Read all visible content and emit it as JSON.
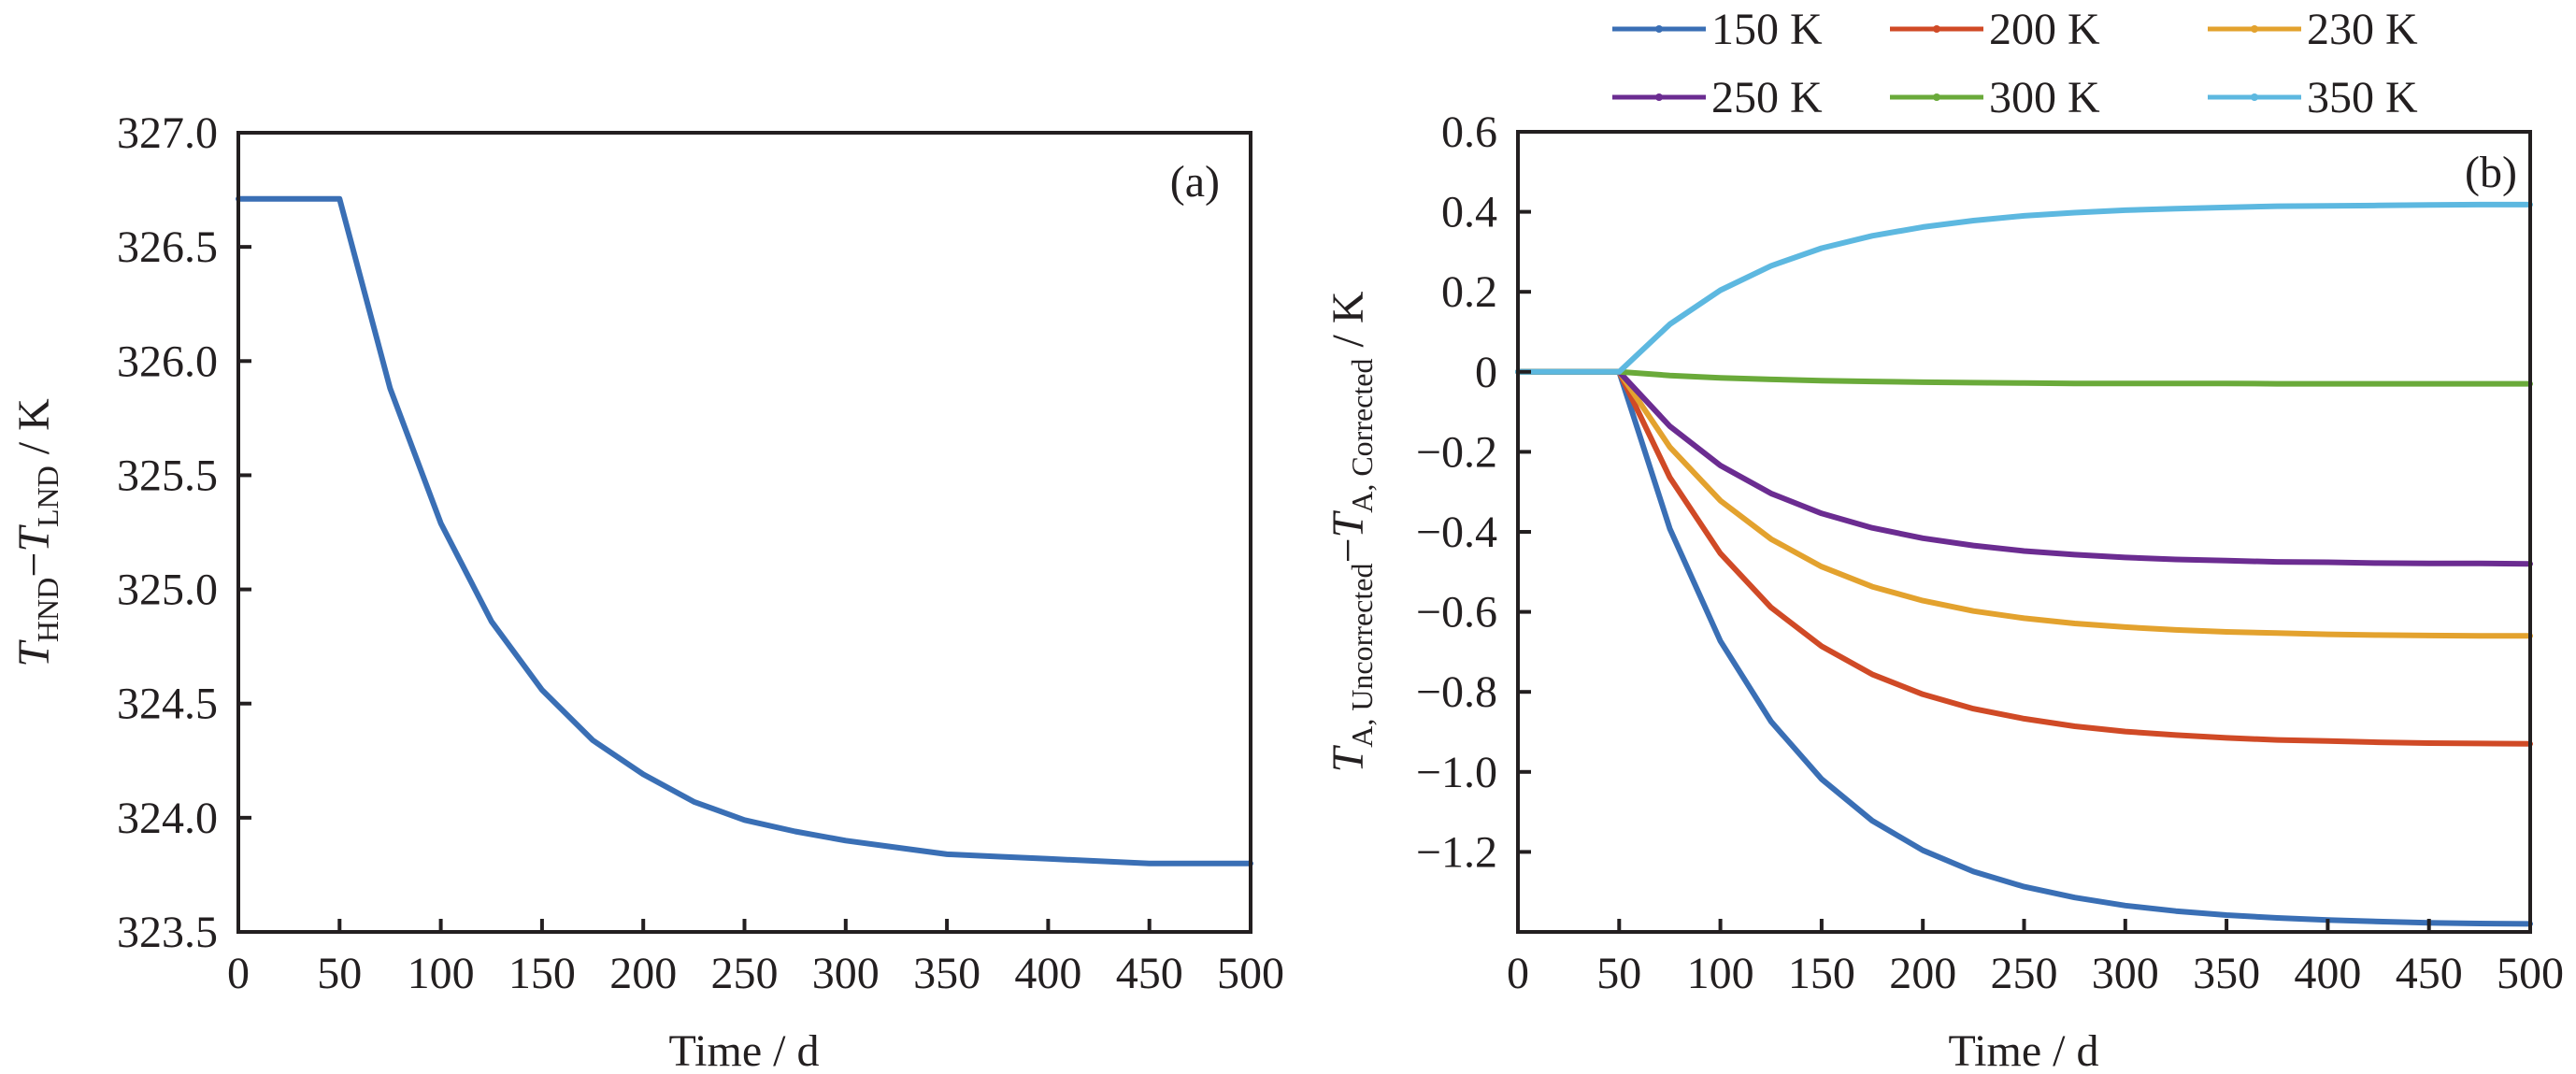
{
  "chart_data": [
    {
      "type": "line",
      "panel_label": "(a)",
      "title": "",
      "xlabel": "Time / d",
      "ylabel": {
        "main": "T",
        "sub1": "HND",
        "minus": "−",
        "main2": "T",
        "sub2": "LND",
        "unit": " / K"
      },
      "xlim": [
        0,
        500
      ],
      "ylim": [
        323.5,
        327.0
      ],
      "xticks": [
        0,
        50,
        100,
        150,
        200,
        250,
        300,
        350,
        400,
        450,
        500
      ],
      "xtick_labels": [
        "0",
        "50",
        "100",
        "150",
        "200",
        "250",
        "300",
        "350",
        "400",
        "450",
        "500"
      ],
      "yticks": [
        323.5,
        324.0,
        324.5,
        325.0,
        325.5,
        326.0,
        326.5,
        327.0
      ],
      "ytick_labels": [
        "323.5",
        "324.0",
        "324.5",
        "325.0",
        "325.5",
        "326.0",
        "326.5",
        "327.0"
      ],
      "grid": false,
      "x": [
        0,
        25,
        50,
        75,
        100,
        125,
        150,
        175,
        200,
        225,
        250,
        275,
        300,
        325,
        350,
        375,
        400,
        425,
        450,
        475,
        500
      ],
      "series": [
        {
          "name": "T_HND − T_LND",
          "color": "#3a6fb5",
          "values": [
            326.71,
            326.71,
            326.71,
            325.88,
            325.29,
            324.86,
            324.56,
            324.34,
            324.19,
            324.07,
            323.99,
            323.94,
            323.9,
            323.87,
            323.84,
            323.83,
            323.82,
            323.81,
            323.8,
            323.8,
            323.8
          ]
        }
      ]
    },
    {
      "type": "line",
      "panel_label": "(b)",
      "title": "",
      "xlabel": "Time / d",
      "ylabel": {
        "main": "T",
        "sub1": "A, Uncorrected",
        "minus": "−",
        "main2": "T",
        "sub2": "A, Corrected",
        "unit": " / K"
      },
      "xlim": [
        0,
        500
      ],
      "ylim": [
        -1.4,
        0.6
      ],
      "xticks": [
        0,
        50,
        100,
        150,
        200,
        250,
        300,
        350,
        400,
        450,
        500
      ],
      "xtick_labels": [
        "0",
        "50",
        "100",
        "150",
        "200",
        "250",
        "300",
        "350",
        "400",
        "450",
        "500"
      ],
      "yticks": [
        -1.2,
        -1.0,
        -0.8,
        -0.6,
        -0.4,
        -0.2,
        0,
        0.2,
        0.4,
        0.6
      ],
      "ytick_labels": [
        "−1.2",
        "−1.0",
        "−0.8",
        "−0.6",
        "−0.4",
        "−0.2",
        "0",
        "0.2",
        "0.4",
        "0.6"
      ],
      "grid": false,
      "legend_position": "top (above plot, 2 rows × 3 columns)",
      "x": [
        0,
        25,
        50,
        75,
        100,
        125,
        150,
        175,
        200,
        225,
        250,
        275,
        300,
        325,
        350,
        375,
        400,
        425,
        450,
        475,
        500
      ],
      "series": [
        {
          "name": "150 K",
          "color": "#3a6fb5",
          "values": [
            0,
            0,
            0,
            -0.392,
            -0.673,
            -0.874,
            -1.018,
            -1.122,
            -1.196,
            -1.249,
            -1.287,
            -1.314,
            -1.334,
            -1.348,
            -1.358,
            -1.365,
            -1.37,
            -1.374,
            -1.377,
            -1.379,
            -1.38
          ]
        },
        {
          "name": "200 K",
          "color": "#d04a26",
          "values": [
            0,
            0,
            0,
            -0.264,
            -0.454,
            -0.589,
            -0.686,
            -0.756,
            -0.806,
            -0.842,
            -0.867,
            -0.886,
            -0.899,
            -0.908,
            -0.915,
            -0.92,
            -0.923,
            -0.926,
            -0.928,
            -0.929,
            -0.93
          ]
        },
        {
          "name": "230 K",
          "color": "#e3a22e",
          "values": [
            0,
            0,
            0,
            -0.188,
            -0.322,
            -0.418,
            -0.487,
            -0.537,
            -0.572,
            -0.598,
            -0.616,
            -0.629,
            -0.638,
            -0.645,
            -0.65,
            -0.653,
            -0.656,
            -0.658,
            -0.659,
            -0.66,
            -0.66
          ]
        },
        {
          "name": "250 K",
          "color": "#6b2c91",
          "values": [
            0,
            0,
            0,
            -0.136,
            -0.234,
            -0.304,
            -0.354,
            -0.39,
            -0.416,
            -0.434,
            -0.448,
            -0.457,
            -0.464,
            -0.469,
            -0.472,
            -0.475,
            -0.476,
            -0.478,
            -0.479,
            -0.479,
            -0.48
          ]
        },
        {
          "name": "300 K",
          "color": "#6aaa3a",
          "values": [
            0,
            0,
            0,
            -0.009,
            -0.015,
            -0.019,
            -0.022,
            -0.024,
            -0.026,
            -0.027,
            -0.028,
            -0.029,
            -0.029,
            -0.029,
            -0.029,
            -0.03,
            -0.03,
            -0.03,
            -0.03,
            -0.03,
            -0.03
          ]
        },
        {
          "name": "350 K",
          "color": "#5db8e0",
          "values": [
            0,
            0,
            0,
            0.119,
            0.204,
            0.265,
            0.309,
            0.34,
            0.362,
            0.378,
            0.39,
            0.398,
            0.404,
            0.408,
            0.411,
            0.414,
            0.415,
            0.416,
            0.417,
            0.418,
            0.418
          ]
        }
      ]
    }
  ]
}
